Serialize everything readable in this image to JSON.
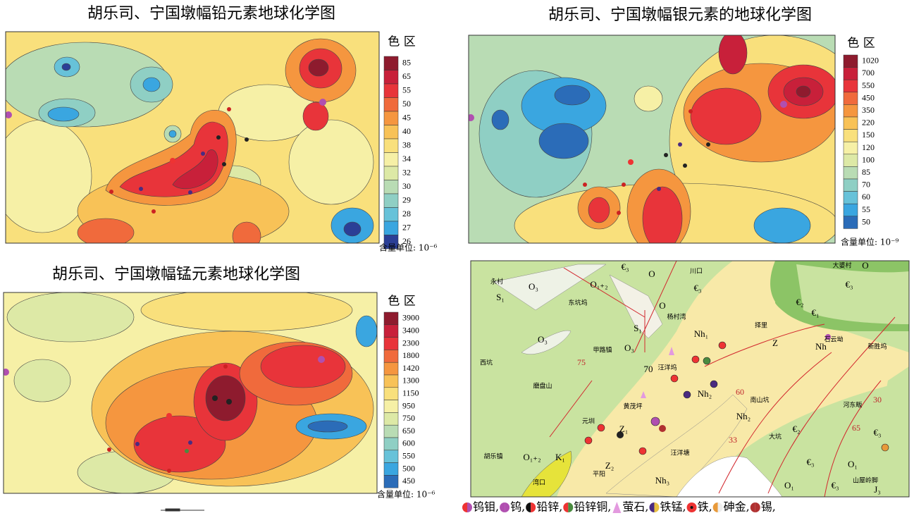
{
  "maps": [
    {
      "title": "胡乐司、宁国墩幅铅元素地球化学图",
      "legend_title": "色 区",
      "unit": "含量单位: 10⁻⁶",
      "classes": [
        {
          "label": "85",
          "color": "#8e1b2e"
        },
        {
          "label": "65",
          "color": "#c8203a"
        },
        {
          "label": "55",
          "color": "#e8343a"
        },
        {
          "label": "50",
          "color": "#f06a3c"
        },
        {
          "label": "45",
          "color": "#f5963f"
        },
        {
          "label": "40",
          "color": "#f8c257"
        },
        {
          "label": "38",
          "color": "#f9e07c"
        },
        {
          "label": "34",
          "color": "#f6f0a6"
        },
        {
          "label": "32",
          "color": "#dde9a6"
        },
        {
          "label": "30",
          "color": "#b9dcb4"
        },
        {
          "label": "29",
          "color": "#8fcfc4"
        },
        {
          "label": "28",
          "color": "#67c2d9"
        },
        {
          "label": "27",
          "color": "#3aa6e0"
        },
        {
          "label": "26",
          "color": "#2b3f96"
        }
      ]
    },
    {
      "title": "胡乐司、宁国墩幅银元素的地球化学图",
      "legend_title": "色 区",
      "unit": "含量单位: 10⁻⁹",
      "classes": [
        {
          "label": "1020",
          "color": "#8e1b2e"
        },
        {
          "label": "700",
          "color": "#c8203a"
        },
        {
          "label": "550",
          "color": "#e8343a"
        },
        {
          "label": "450",
          "color": "#f06a3c"
        },
        {
          "label": "350",
          "color": "#f5963f"
        },
        {
          "label": "220",
          "color": "#f8c257"
        },
        {
          "label": "150",
          "color": "#f9e07c"
        },
        {
          "label": "120",
          "color": "#f6f0a6"
        },
        {
          "label": "100",
          "color": "#dde9a6"
        },
        {
          "label": "85",
          "color": "#b9dcb4"
        },
        {
          "label": "70",
          "color": "#8fcfc4"
        },
        {
          "label": "60",
          "color": "#67c2d9"
        },
        {
          "label": "55",
          "color": "#3aa6e0"
        },
        {
          "label": "50",
          "color": "#2b6cb8"
        }
      ]
    },
    {
      "title": "胡乐司、宁国墩幅锰元素地球化学图",
      "legend_title": "色 区",
      "unit": "含量单位: 10⁻⁶",
      "classes": [
        {
          "label": "3900",
          "color": "#8e1b2e"
        },
        {
          "label": "3400",
          "color": "#c8203a"
        },
        {
          "label": "2300",
          "color": "#e8343a"
        },
        {
          "label": "1800",
          "color": "#f06a3c"
        },
        {
          "label": "1420",
          "color": "#f5963f"
        },
        {
          "label": "1300",
          "color": "#f8c257"
        },
        {
          "label": "1150",
          "color": "#f9e07c"
        },
        {
          "label": "950",
          "color": "#f6f0a6"
        },
        {
          "label": "750",
          "color": "#dde9a6"
        },
        {
          "label": "650",
          "color": "#b9dcb4"
        },
        {
          "label": "600",
          "color": "#8fcfc4"
        },
        {
          "label": "550",
          "color": "#67c2d9"
        },
        {
          "label": "500",
          "color": "#3aa6e0"
        },
        {
          "label": "450",
          "color": "#2b6cb8"
        }
      ]
    }
  ],
  "geology_map": {
    "labels": [
      "€₃",
      "O",
      "川口",
      "大婆村",
      "O",
      "永村",
      "S₁",
      "O₃",
      "O₁₊₂",
      "€₃",
      "€₃",
      "东坑坞",
      "O",
      "杨村湾",
      "€₂",
      "€₁",
      "Nh₁",
      "择里",
      "O₃",
      "S₁",
      "甲路镇",
      "O₃",
      "Z",
      "Nh",
      "石云坳",
      "新胜坞",
      "西坑",
      "75",
      "70",
      "汪洋坞",
      "磨盘山",
      "Nh₂",
      "60",
      "南山坑",
      "30",
      "黄茂坪",
      "Nh₂",
      "河东畈",
      "元圳",
      "Z₁",
      "€₂",
      "65",
      "€₃",
      "33",
      "大坑",
      "胡乐镇",
      "O₁₊₂",
      "K₁",
      "Z₂",
      "汪洋塘",
      "€₃",
      "O₁",
      "平阳",
      "Nh₃",
      "湾口",
      "O₁",
      "€₃",
      "山屋岭脚",
      "J₃"
    ]
  },
  "mineral_legend": {
    "items": [
      "钨钼,",
      "钨,",
      "铅锌,",
      "铅锌铜,",
      "萤石,",
      "铁锰,",
      "铁,",
      "砷金,",
      "锡,"
    ]
  }
}
